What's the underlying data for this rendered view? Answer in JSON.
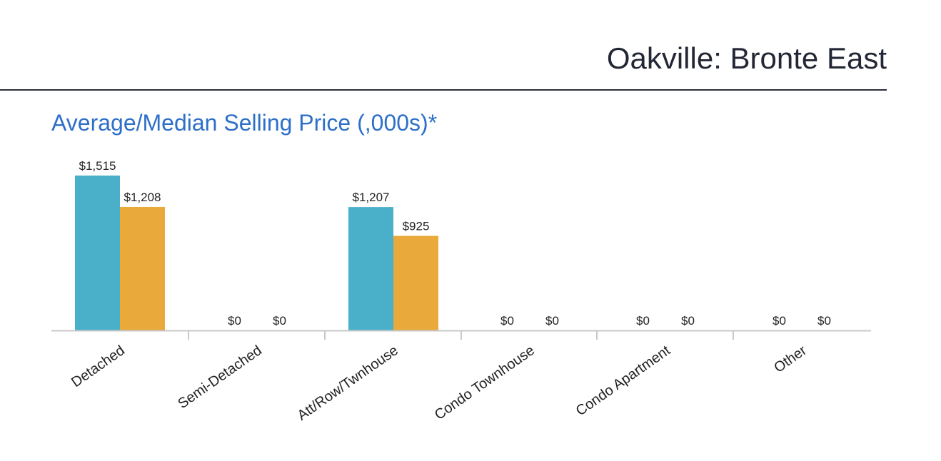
{
  "page": {
    "title": "Oakville: Bronte East"
  },
  "chart_data": {
    "type": "bar",
    "title": "Average/Median Selling Price (,000s)*",
    "xlabel": "",
    "ylabel": "",
    "categories": [
      "Detached",
      "Semi-Detached",
      "Att/Row/Twnhouse",
      "Condo Townhouse",
      "Condo Apartment",
      "Other"
    ],
    "series": [
      {
        "values": [
          1515,
          0,
          1207,
          0,
          0,
          0
        ],
        "color": "#4aafc8"
      },
      {
        "values": [
          1208,
          0,
          925,
          0,
          0,
          0
        ],
        "color": "#e9a93b"
      }
    ],
    "data_labels": [
      [
        "$1,515",
        "$0",
        "$1,207",
        "$0",
        "$0",
        "$0"
      ],
      [
        "$1,208",
        "$0",
        "$925",
        "$0",
        "$0",
        "$0"
      ]
    ],
    "ylim": [
      0,
      1515
    ],
    "grid": false,
    "legend": "none"
  }
}
